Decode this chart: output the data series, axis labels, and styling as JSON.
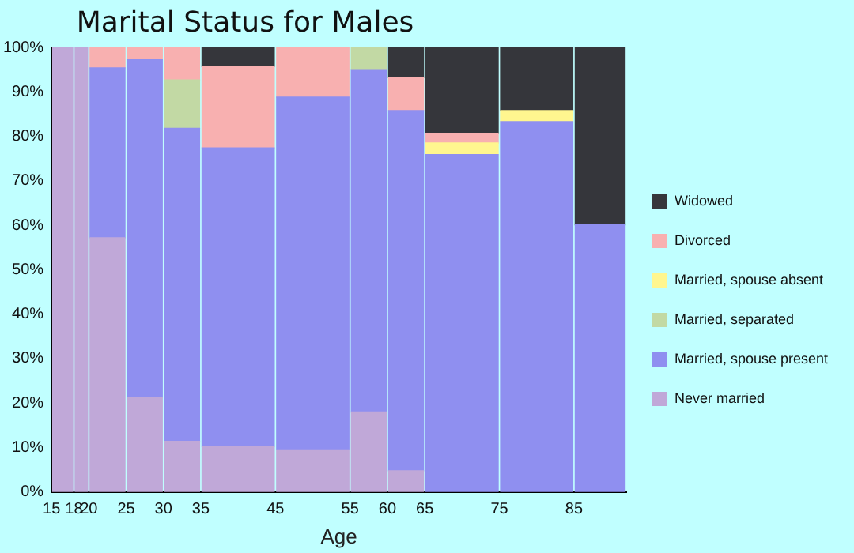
{
  "chart_data": {
    "type": "bar",
    "stacked": true,
    "title": "Marital Status for Males",
    "xlabel": "Age",
    "x": [
      16.5,
      19,
      22.5,
      27.5,
      32.5,
      40,
      50,
      57.5,
      62.5,
      70,
      80,
      88.5
    ],
    "xlim": [
      15,
      92
    ],
    "xticks": [
      15,
      18,
      20,
      25,
      30,
      35,
      45,
      55,
      60,
      65,
      75,
      85
    ],
    "ylim": [
      0,
      100
    ],
    "yticks": [
      {
        "value": 0,
        "label": "0%"
      },
      {
        "value": 10,
        "label": "10%"
      },
      {
        "value": 20,
        "label": "20%"
      },
      {
        "value": 30,
        "label": "30%"
      },
      {
        "value": 40,
        "label": "40%"
      },
      {
        "value": 50,
        "label": "50%"
      },
      {
        "value": 60,
        "label": "60%"
      },
      {
        "value": 70,
        "label": "70%"
      },
      {
        "value": 80,
        "label": "80%"
      },
      {
        "value": 90,
        "label": "90%"
      },
      {
        "value": 100,
        "label": "100%"
      }
    ],
    "grid": false,
    "legend": "right",
    "series": [
      {
        "name": "Never married",
        "color": "#c0a8d8",
        "values": [
          100,
          100,
          57.2,
          21.3,
          11.4,
          10.3,
          9.5,
          18.0,
          4.8,
          null,
          null,
          null
        ]
      },
      {
        "name": "Married, spouse present",
        "color": "#8f8ff0",
        "values": [
          null,
          null,
          38.2,
          75.9,
          70.4,
          67.1,
          79.3,
          77.0,
          81.0,
          75.9,
          83.3,
          60.1
        ]
      },
      {
        "name": "Married, separated",
        "color": "#c2d9a4",
        "values": [
          null,
          null,
          null,
          null,
          10.9,
          null,
          null,
          5.0,
          null,
          null,
          null,
          null
        ]
      },
      {
        "name": "Married, spouse absent",
        "color": "#fff68f",
        "values": [
          null,
          null,
          null,
          null,
          null,
          null,
          null,
          null,
          null,
          2.6,
          2.5,
          null
        ]
      },
      {
        "name": "Divorced",
        "color": "#f8b0b0",
        "values": [
          null,
          null,
          4.6,
          2.8,
          7.3,
          18.3,
          11.2,
          null,
          7.4,
          2.2,
          null,
          null
        ]
      },
      {
        "name": "Widowed",
        "color": "#35363b",
        "values": [
          null,
          null,
          null,
          null,
          null,
          4.3,
          null,
          null,
          6.8,
          19.3,
          14.2,
          39.9
        ]
      }
    ]
  }
}
